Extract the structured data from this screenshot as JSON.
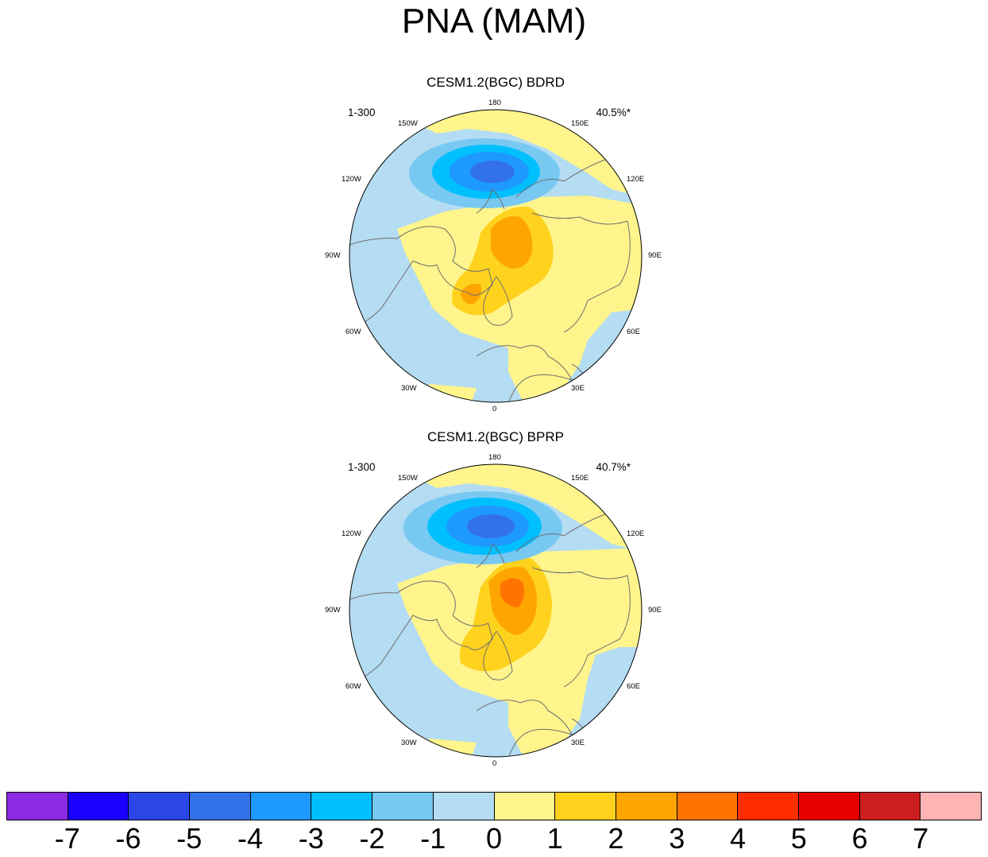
{
  "title": "PNA (MAM)",
  "panels": [
    {
      "title": "CESM1.2(BGC) BDRD",
      "period": "1-300",
      "variance": "40.5%*"
    },
    {
      "title": "CESM1.2(BGC) BPRP",
      "period": "1-300",
      "variance": "40.7%*"
    }
  ],
  "longitude_labels": {
    "top": "180",
    "bottom": "0",
    "upper_left": "150W",
    "upper_right": "150E",
    "left_upper": "120W",
    "right_upper": "120E",
    "left": "90W",
    "right": "90E",
    "left_lower": "60W",
    "right_lower": "60E",
    "lower_left": "30W",
    "lower_right": "30E"
  },
  "colorbar": {
    "colors": [
      "#8a2be2",
      "#1a00ff",
      "#2b46e6",
      "#3371e8",
      "#1e99ff",
      "#00bfff",
      "#77c9f2",
      "#b4dcf2",
      "#fff58c",
      "#ffd21e",
      "#ffa500",
      "#ff7300",
      "#ff2d00",
      "#e60000",
      "#cc1e1e",
      "#ffb4b4"
    ],
    "tick_labels": [
      "-7",
      "-6",
      "-5",
      "-4",
      "-3",
      "-2",
      "-1",
      "0",
      "1",
      "2",
      "3",
      "4",
      "5",
      "6",
      "7"
    ]
  },
  "map_colors": {
    "background": "#b4dcf2",
    "pos1": "#fff58c",
    "pos2": "#ffd21e",
    "pos3": "#ffa500",
    "pos4": "#ff7300",
    "neg2": "#77c9f2",
    "neg3": "#00bfff",
    "neg4": "#1e99ff",
    "neg5": "#3371e8",
    "coast": "#6e6e6e"
  }
}
